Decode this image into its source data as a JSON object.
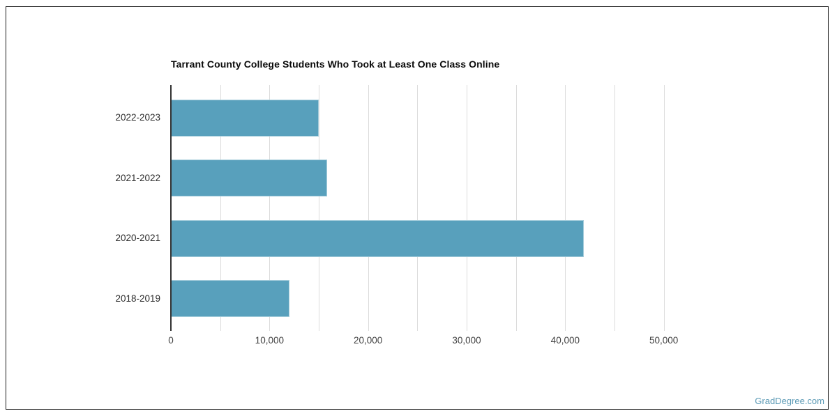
{
  "title": "Tarrant County College Students Who Took at Least One Class Online",
  "watermark": {
    "text": "GradDegree.com"
  },
  "colors": {
    "bar": "#58a0bc",
    "bar_stroke": "rgba(255,255,255,0.45)",
    "gridline": "#dcdcdc",
    "axis_line": "#333333",
    "title_text": "#0b0b0b",
    "tick_label": "#424242",
    "category_label": "#2b2b2b",
    "watermark_text": "#5b9ab5",
    "frame_border": "#1e1e1e",
    "background": "#ffffff"
  },
  "chart_data": {
    "type": "bar",
    "orientation": "horizontal",
    "title": "Tarrant County College Students Who Took at Least One Class Online",
    "categories": [
      "2022-2023",
      "2021-2022",
      "2020-2021",
      "2018-2019"
    ],
    "values": [
      15000,
      15850,
      41900,
      12000
    ],
    "xlabel": "",
    "ylabel": "",
    "xlim": [
      0,
      55000
    ],
    "xticks": [
      0,
      10000,
      20000,
      30000,
      40000,
      50000
    ],
    "xtick_labels": [
      "0",
      "10,000",
      "20,000",
      "30,000",
      "40,000",
      "50,000"
    ],
    "grid": true,
    "gridline_values": [
      5000,
      10000,
      15000,
      20000,
      25000,
      30000,
      35000,
      40000,
      45000,
      50000
    ],
    "legend": "none"
  }
}
